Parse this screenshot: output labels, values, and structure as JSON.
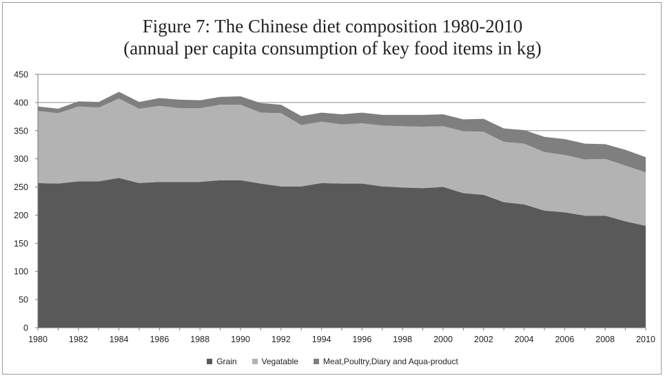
{
  "chart_data": {
    "type": "area",
    "stacked": true,
    "title_lines": [
      "Figure 7: The Chinese diet composition 1980-2010",
      "(annual per capita consumption of key food items in kg)"
    ],
    "xlabel": "",
    "ylabel": "",
    "ylim": [
      0,
      450
    ],
    "yticks": [
      0,
      50,
      100,
      150,
      200,
      250,
      300,
      350,
      400,
      450
    ],
    "xticks": [
      1980,
      1982,
      1984,
      1986,
      1988,
      1990,
      1992,
      1994,
      1996,
      1998,
      2000,
      2002,
      2004,
      2006,
      2008,
      2010
    ],
    "grid": "horizontal",
    "legend_position": "bottom",
    "x": [
      1980,
      1981,
      1982,
      1983,
      1984,
      1985,
      1986,
      1987,
      1988,
      1989,
      1990,
      1991,
      1992,
      1993,
      1994,
      1995,
      1996,
      1997,
      1998,
      1999,
      2000,
      2001,
      2002,
      2003,
      2004,
      2005,
      2006,
      2007,
      2008,
      2009,
      2010
    ],
    "series": [
      {
        "name": "Grain",
        "color": "#595959",
        "values": [
          257,
          256,
          260,
          260,
          266,
          257,
          259,
          259,
          259,
          262,
          262,
          256,
          251,
          251,
          257,
          256,
          256,
          251,
          249,
          248,
          250,
          239,
          236,
          223,
          219,
          208,
          205,
          199,
          199,
          189,
          181
        ]
      },
      {
        "name": "Vegatable",
        "color": "#b3b3b3",
        "values": [
          128,
          125,
          133,
          131,
          141,
          132,
          135,
          131,
          131,
          134,
          134,
          126,
          130,
          109,
          109,
          105,
          107,
          108,
          109,
          109,
          108,
          110,
          112,
          107,
          108,
          104,
          102,
          100,
          101,
          99,
          95
        ]
      },
      {
        "name": "Meat,Poultry,Diary and Aqua-product",
        "color": "#7f7f7f",
        "values": [
          8,
          8,
          9,
          10,
          12,
          12,
          14,
          15,
          14,
          14,
          15,
          17,
          15,
          16,
          16,
          18,
          19,
          19,
          20,
          21,
          21,
          21,
          23,
          24,
          24,
          27,
          28,
          28,
          26,
          28,
          27
        ]
      }
    ]
  }
}
